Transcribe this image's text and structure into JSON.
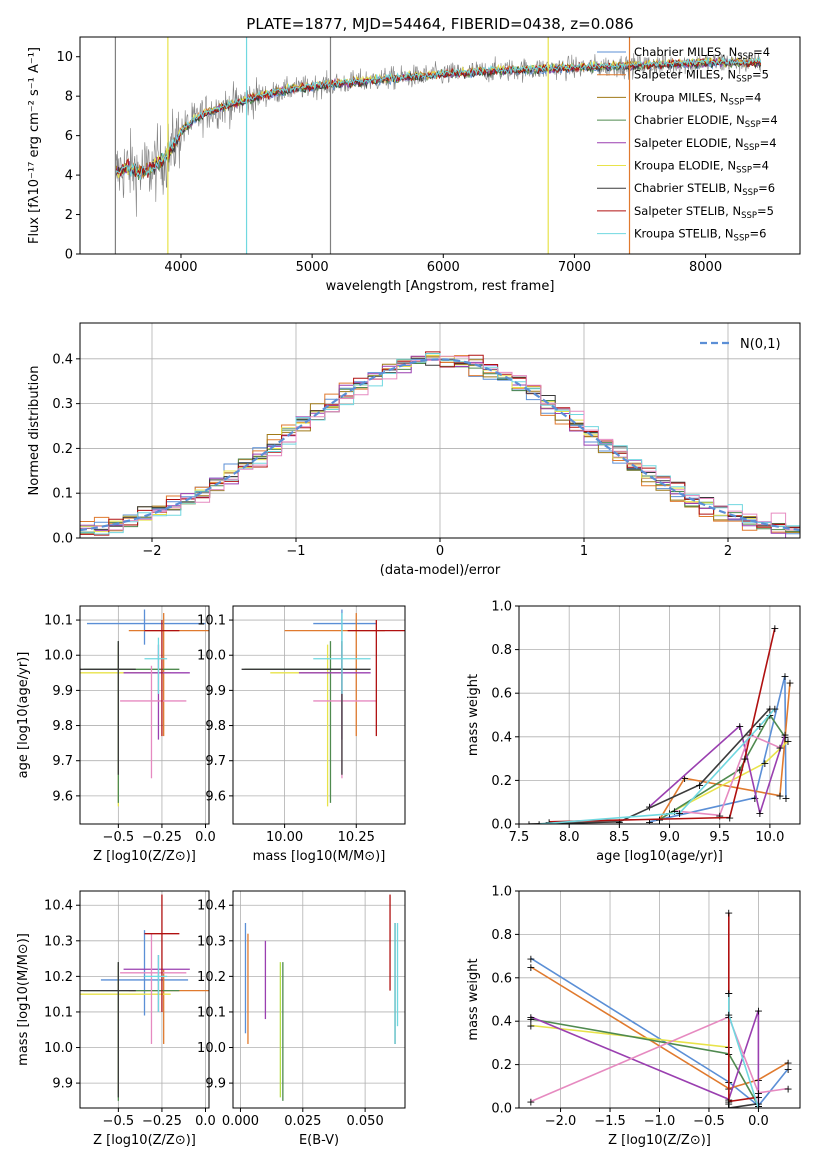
{
  "colors": {
    "chabrier_miles": "#5b8fd6",
    "salpeter_miles": "#e07a2e",
    "kroupa_miles": "#a07a18",
    "chabrier_elodie": "#4f8a4f",
    "salpeter_elodie": "#9a3fb0",
    "kroupa_elodie": "#e8e34a",
    "chabrier_stelib": "#3a3a3a",
    "salpeter_stelib": "#b01010",
    "kroupa_stelib": "#70d8e0",
    "pink": "#e68ac0",
    "lime": "#b8e04a",
    "grid": "#b0b0b0",
    "spectrum": "#808080",
    "gauss": "#5b8fd6"
  },
  "chart_data": [
    {
      "id": "spectrum",
      "type": "line",
      "title": "PLATE=1877, MJD=54464, FIBERID=0438, z=0.086",
      "xlabel": "wavelength [Angstrom, rest frame]",
      "ylabel": "Flux [fλ10⁻¹⁷ erg cm⁻² s⁻¹ A⁻¹]",
      "xlim": [
        3230,
        8720
      ],
      "ylim": [
        0,
        11
      ],
      "xticks": [
        4000,
        5000,
        6000,
        7000,
        8000
      ],
      "yticks": [
        0,
        2,
        4,
        6,
        8,
        10
      ],
      "legend": [
        "Chabrier MILES, N_SSP=4",
        "Salpeter MILES, N_SSP=5",
        "Kroupa MILES, N_SSP=4",
        "Chabrier ELODIE, N_SSP=4",
        "Salpeter ELODIE, N_SSP=4",
        "Kroupa ELODIE, N_SSP=4",
        "Chabrier STELIB, N_SSP=6",
        "Salpeter STELIB, N_SSP=5",
        "Kroupa STELIB, N_SSP=6"
      ],
      "continuum": {
        "x": [
          3500,
          3600,
          3700,
          3800,
          3900,
          4000,
          4100,
          4200,
          4400,
          4600,
          4800,
          5000,
          5300,
          5600,
          6000,
          6400,
          6800,
          7200,
          7600,
          8000,
          8400
        ],
        "y": [
          4.1,
          4.4,
          4.1,
          4.5,
          5.0,
          6.2,
          6.8,
          7.2,
          7.6,
          8.0,
          8.3,
          8.5,
          8.7,
          8.9,
          9.1,
          9.3,
          9.4,
          9.5,
          9.6,
          9.7,
          9.7
        ]
      },
      "spikes": [
        3500,
        3900,
        4500,
        5140,
        6800,
        7420
      ]
    },
    {
      "id": "residual_hist",
      "type": "line",
      "xlabel": "(data-model)/error",
      "ylabel": "Normed distribution",
      "xlim": [
        -2.5,
        2.5
      ],
      "ylim": [
        0,
        0.48
      ],
      "xticks": [
        -2,
        -1,
        0,
        1,
        2
      ],
      "yticks": [
        0.0,
        0.1,
        0.2,
        0.3,
        0.4
      ],
      "legend": [
        "N(0,1)"
      ]
    },
    {
      "id": "age_vs_Z",
      "type": "scatter",
      "xlabel": "Z [log10(Z/Z⊙)]",
      "ylabel": "age  [log10(age/yr)]",
      "xlim": [
        -0.72,
        0.02
      ],
      "ylim": [
        9.52,
        10.14
      ],
      "xticks": [
        -0.5,
        -0.25,
        0.0
      ],
      "yticks": [
        9.6,
        9.7,
        9.8,
        9.9,
        10.0,
        10.1
      ]
    },
    {
      "id": "age_vs_mass",
      "type": "scatter",
      "xlabel": "mass [log10(M/M⊙)]",
      "xlim": [
        9.82,
        10.42
      ],
      "ylim": [
        9.52,
        10.14
      ],
      "xticks": [
        10.0,
        10.25
      ],
      "yticks": [
        9.6,
        9.7,
        9.8,
        9.9,
        10.0,
        10.1
      ]
    },
    {
      "id": "weight_vs_age",
      "type": "line",
      "xlabel": "age  [log10(age/yr)]",
      "ylabel": "mass weight",
      "xlim": [
        7.5,
        10.3
      ],
      "ylim": [
        0,
        1.0
      ],
      "xticks": [
        7.5,
        8.0,
        8.5,
        9.0,
        9.5,
        10.0
      ],
      "yticks": [
        0.0,
        0.2,
        0.4,
        0.6,
        0.8,
        1.0
      ]
    },
    {
      "id": "mass_vs_Z",
      "type": "scatter",
      "xlabel": "Z [log10(Z/Z⊙)]",
      "ylabel": "mass [log10(M/M⊙)]",
      "xlim": [
        -0.72,
        0.02
      ],
      "ylim": [
        9.83,
        10.44
      ],
      "xticks": [
        -0.5,
        -0.25,
        0.0
      ],
      "yticks": [
        9.9,
        10.0,
        10.1,
        10.2,
        10.3,
        10.4
      ]
    },
    {
      "id": "mass_vs_ebv",
      "type": "scatter",
      "xlabel": "E(B-V)",
      "xlim": [
        -0.003,
        0.066
      ],
      "ylim": [
        9.83,
        10.44
      ],
      "xticks": [
        0.0,
        0.025,
        0.05
      ],
      "yticks": [
        9.9,
        10.0,
        10.1,
        10.2,
        10.3,
        10.4
      ]
    },
    {
      "id": "weight_vs_Z",
      "type": "line",
      "xlabel": "Z [log10(Z/Z⊙)]",
      "ylabel": "mass weight",
      "xlim": [
        -2.42,
        0.42
      ],
      "ylim": [
        0,
        1.0
      ],
      "xticks": [
        -2.0,
        -1.5,
        -1.0,
        -0.5,
        0.0
      ],
      "yticks": [
        0.0,
        0.2,
        0.4,
        0.6,
        0.8,
        1.0
      ]
    }
  ]
}
